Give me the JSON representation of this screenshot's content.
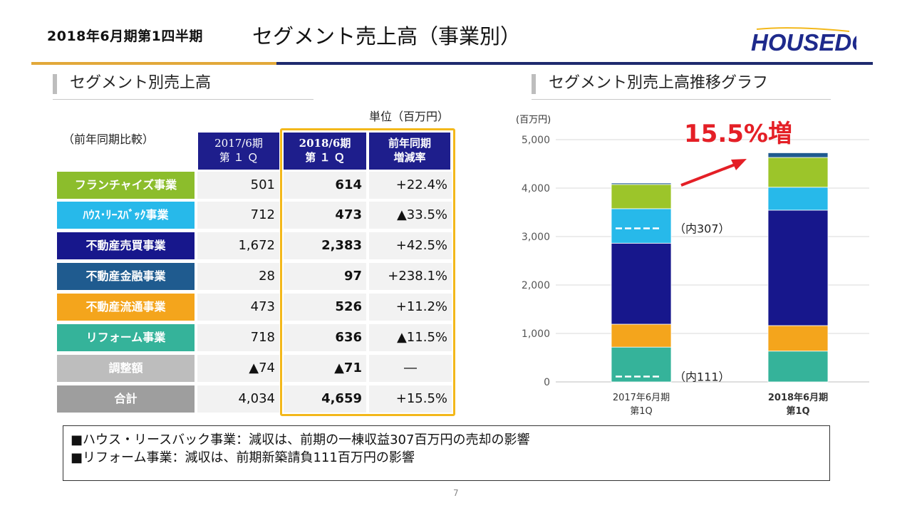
{
  "header": {
    "title_main": "2018年6月期第1四半期",
    "title_sub": "セグメント売上高（事業別）",
    "logo_text": "HOUSEDO"
  },
  "table_section": {
    "heading": "セグメント別売上高",
    "unit": "単位（百万円）",
    "compare_note": "（前年同期比較）",
    "col_prev_line1": "2017/6期",
    "col_prev_line2": "第 １ Ｑ",
    "col_cur_line1": "2018/6期",
    "col_cur_line2": "第 １ Ｑ",
    "col_rate_line1": "前年同期",
    "col_rate_line2": "増減率",
    "rows": [
      {
        "label": "フランチャイズ事業",
        "prev": "501",
        "cur": "614",
        "rate": "+22.4%",
        "color": "#8cbd2c"
      },
      {
        "label": "ﾊｳｽ･ﾘｰｽﾊﾞｯｸ事業",
        "prev": "712",
        "cur": "473",
        "rate": "▲33.5%",
        "color": "#27b9ea"
      },
      {
        "label": "不動産売買事業",
        "prev": "1,672",
        "cur": "2,383",
        "rate": "+42.5%",
        "color": "#17178c"
      },
      {
        "label": "不動産金融事業",
        "prev": "28",
        "cur": "97",
        "rate": "+238.1%",
        "color": "#1f5b8f"
      },
      {
        "label": "不動産流通事業",
        "prev": "473",
        "cur": "526",
        "rate": "+11.2%",
        "color": "#f4a51c"
      },
      {
        "label": "リフォーム事業",
        "prev": "718",
        "cur": "636",
        "rate": "▲11.5%",
        "color": "#35b39a"
      },
      {
        "label": "調整額",
        "prev": "▲74",
        "cur": "▲71",
        "rate": "―",
        "color": "#bdbdbd"
      },
      {
        "label": "合計",
        "prev": "4,034",
        "cur": "4,659",
        "rate": "+15.5%",
        "color": "#9e9e9e"
      }
    ]
  },
  "chart_section": {
    "heading": "セグメント別売上高推移グラフ",
    "growth_label": "15.5%増"
  },
  "chart_data": {
    "type": "bar",
    "stacked": true,
    "ylabel": "(百万円)",
    "ylim": [
      0,
      5000
    ],
    "yticks": [
      "0",
      "1,000",
      "2,000",
      "3,000",
      "4,000",
      "5,000"
    ],
    "categories": [
      {
        "line1": "2017年6月期",
        "line2": "第1Q",
        "bold": false
      },
      {
        "line1": "2018年6月期",
        "line2": "第1Q",
        "bold": true
      }
    ],
    "grid": true,
    "series": [
      {
        "name": "リフォーム事業",
        "color": "#35b39a",
        "values": [
          718,
          636
        ]
      },
      {
        "name": "不動産流通事業",
        "color": "#f4a51c",
        "values": [
          473,
          526
        ]
      },
      {
        "name": "不動産売買事業",
        "color": "#17178c",
        "values": [
          1672,
          2383
        ]
      },
      {
        "name": "ハウス・リースバック事業",
        "color": "#27b9ea",
        "values": [
          712,
          473
        ]
      },
      {
        "name": "フランチャイズ事業",
        "color": "#9cc52a",
        "values": [
          501,
          614
        ]
      },
      {
        "name": "不動産金融事業",
        "color": "#1f5b8f",
        "values": [
          28,
          97
        ]
      }
    ],
    "annotations": [
      {
        "text": "（内307）",
        "category_index": 0,
        "series": "ハウス・リースバック事業",
        "at": 307
      },
      {
        "text": "（内111）",
        "category_index": 0,
        "series": "リフォーム事業",
        "at": 111
      }
    ]
  },
  "notes": [
    "■ハウス・リースバック事業：減収は、前期の一棟収益307百万円の売却の影響",
    "■リフォーム事業：減収は、前期新築請負111百万円の影響"
  ],
  "page_number": "7"
}
